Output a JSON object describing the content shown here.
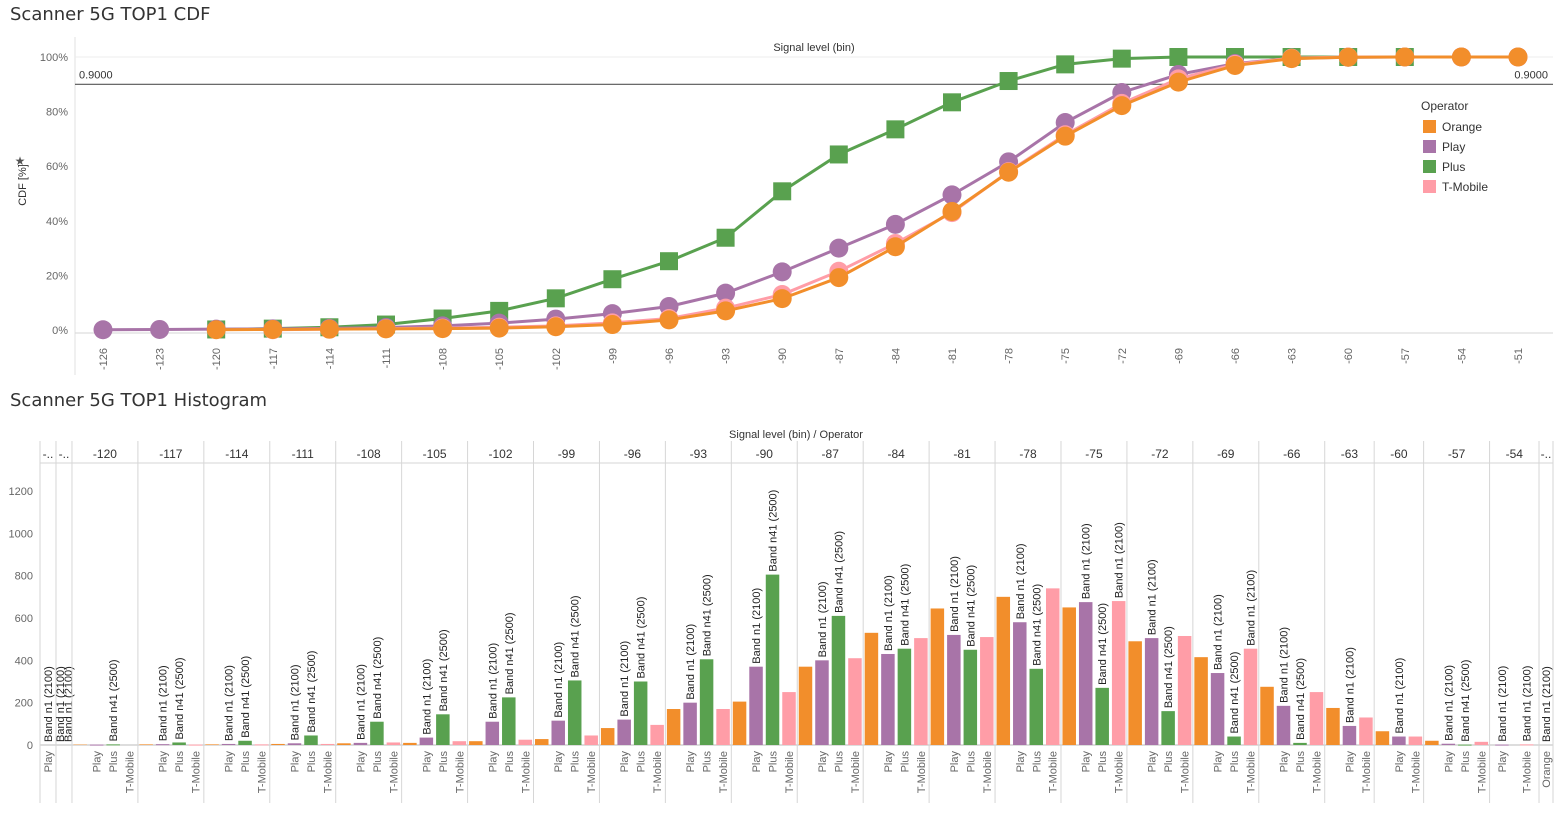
{
  "sheet1": {
    "title": "Scanner 5G TOP1 CDF"
  },
  "sheet2": {
    "title": "Scanner 5G TOP1 Histogram"
  },
  "chart_data": [
    {
      "type": "line",
      "title": "Scanner 5G TOP1 CDF",
      "header": "Signal level (bin)",
      "ylabel": "CDF [%]",
      "ylim": [
        0,
        100
      ],
      "yticks": [
        "0%",
        "20%",
        "40%",
        "60%",
        "80%",
        "100%"
      ],
      "x": [
        -126,
        -123,
        -120,
        -117,
        -114,
        -111,
        -108,
        -105,
        -102,
        -99,
        -96,
        -93,
        -90,
        -87,
        -84,
        -81,
        -78,
        -75,
        -72,
        -69,
        -66,
        -63,
        -60,
        -57,
        -54,
        -51
      ],
      "reference_line": {
        "value": 90,
        "label_left": "0.9000",
        "label_right": "0.9000"
      },
      "legend": {
        "title": "Operator",
        "placement": "right"
      },
      "series": [
        {
          "name": "Orange",
          "color": "#F28E2B",
          "marker": "circle",
          "values": [
            null,
            null,
            0.1,
            0.2,
            0.3,
            0.4,
            0.5,
            0.7,
            1.2,
            2.0,
            3.7,
            7.0,
            11.5,
            19.2,
            30.5,
            43.4,
            57.8,
            71.0,
            82.2,
            90.8,
            96.9,
            99.4,
            99.9,
            100.0,
            100.0,
            100.0
          ]
        },
        {
          "name": "Play",
          "color": "#A874A8",
          "marker": "circle",
          "values": [
            0.1,
            0.2,
            0.3,
            0.4,
            0.6,
            0.9,
            1.5,
            2.5,
            4.0,
            6.0,
            8.6,
            13.5,
            21.3,
            30.0,
            38.7,
            49.5,
            61.6,
            76.0,
            87.0,
            93.6,
            97.6,
            99.5,
            99.9,
            100.0,
            100.0,
            100.0
          ]
        },
        {
          "name": "Plus",
          "color": "#59A14F",
          "marker": "square",
          "values": [
            null,
            null,
            0.2,
            0.5,
            1.0,
            2.0,
            4.2,
            7.0,
            11.6,
            18.6,
            25.2,
            33.8,
            50.8,
            64.3,
            73.5,
            83.4,
            91.2,
            97.3,
            99.4,
            100.0,
            100.0,
            100.0,
            100.0,
            100.0,
            null,
            null
          ]
        },
        {
          "name": "T-Mobile",
          "color": "#FF9DA7",
          "marker": "circle",
          "values": [
            null,
            null,
            null,
            0.1,
            0.3,
            0.5,
            0.7,
            1.0,
            1.5,
            2.6,
            4.2,
            8.0,
            13.0,
            21.5,
            31.7,
            43.0,
            58.0,
            71.5,
            83.0,
            92.0,
            97.3,
            99.6,
            100.0,
            100.0,
            100.0,
            100.0
          ]
        }
      ]
    },
    {
      "type": "bar",
      "title": "Scanner 5G TOP1 Histogram",
      "header": "Signal level (bin) / Operator",
      "ylim": [
        0,
        1300
      ],
      "yticks": [
        0,
        200,
        400,
        600,
        800,
        1000,
        1200
      ],
      "groups": [
        {
          "bin": "-..",
          "bars": [
            {
              "op": "Play",
              "label": "Band n1 (2100)",
              "value": 0
            }
          ]
        },
        {
          "bin": "-..",
          "bars": [
            {
              "op": "",
              "label": "Band n1 (2100)",
              "value": 0
            },
            {
              "op": "",
              "label": "Band n1 (2100)",
              "value": 0
            }
          ]
        },
        {
          "bin": "-120",
          "bars": [
            {
              "op": "Play",
              "label": "",
              "value": 2
            },
            {
              "op": "Plus",
              "label": "Band n41 (2500)",
              "value": 3
            },
            {
              "op": "T-Mobile",
              "label": "",
              "value": 0
            }
          ]
        },
        {
          "bin": "-117",
          "bars": [
            {
              "op": "Play",
              "label": "Band n1 (2100)",
              "value": 4
            },
            {
              "op": "Plus",
              "label": "Band n41 (2500)",
              "value": 12
            },
            {
              "op": "T-Mobile",
              "label": "",
              "value": 2
            }
          ]
        },
        {
          "bin": "-114",
          "bars": [
            {
              "op": "Play",
              "label": "Band n1 (2100)",
              "value": 5
            },
            {
              "op": "Plus",
              "label": "Band n41 (2500)",
              "value": 20
            },
            {
              "op": "T-Mobile",
              "label": "",
              "value": 3
            }
          ]
        },
        {
          "bin": "-111",
          "bars": [
            {
              "op": "Play",
              "label": "Band n1 (2100)",
              "value": 8
            },
            {
              "op": "Plus",
              "label": "Band n41 (2500)",
              "value": 45
            },
            {
              "op": "T-Mobile",
              "label": "",
              "value": 5
            }
          ]
        },
        {
          "bin": "-108",
          "bars": [
            {
              "op": "Play",
              "label": "Band n1 (2100)",
              "value": 10
            },
            {
              "op": "Plus",
              "label": "Band n41 (2500)",
              "value": 110
            },
            {
              "op": "T-Mobile",
              "label": "",
              "value": 12
            }
          ]
        },
        {
          "bin": "-105",
          "bars": [
            {
              "op": "Play",
              "label": "Band n1 (2100)",
              "value": 35
            },
            {
              "op": "Plus",
              "label": "Band n41 (2500)",
              "value": 145
            },
            {
              "op": "T-Mobile",
              "label": "",
              "value": 18
            }
          ]
        },
        {
          "bin": "-102",
          "bars": [
            {
              "op": "Play",
              "label": "Band n1 (2100)",
              "value": 110
            },
            {
              "op": "Plus",
              "label": "Band n41 (2500)",
              "value": 225
            },
            {
              "op": "T-Mobile",
              "label": "",
              "value": 25
            }
          ]
        },
        {
          "bin": "-99",
          "bars": [
            {
              "op": "Play",
              "label": "Band n1 (2100)",
              "value": 115
            },
            {
              "op": "Plus",
              "label": "Band n41 (2500)",
              "value": 305
            },
            {
              "op": "T-Mobile",
              "label": "",
              "value": 45
            }
          ]
        },
        {
          "bin": "-96",
          "bars": [
            {
              "op": "Play",
              "label": "Band n1 (2100)",
              "value": 120
            },
            {
              "op": "Plus",
              "label": "Band n41 (2500)",
              "value": 300
            },
            {
              "op": "T-Mobile",
              "label": "",
              "value": 95
            }
          ]
        },
        {
          "bin": "-93",
          "bars": [
            {
              "op": "Play",
              "label": "Band n1 (2100)",
              "value": 200
            },
            {
              "op": "Plus",
              "label": "Band n41 (2500)",
              "value": 405
            },
            {
              "op": "T-Mobile",
              "label": "",
              "value": 170
            }
          ]
        },
        {
          "bin": "-90",
          "bars": [
            {
              "op": "Play",
              "label": "Band n1 (2100)",
              "value": 370
            },
            {
              "op": "Plus",
              "label": "Band n41 (2500)",
              "value": 805
            },
            {
              "op": "T-Mobile",
              "label": "",
              "value": 250
            }
          ]
        },
        {
          "bin": "-87",
          "bars": [
            {
              "op": "Play",
              "label": "Band n1 (2100)",
              "value": 400
            },
            {
              "op": "Plus",
              "label": "Band n41 (2500)",
              "value": 610
            },
            {
              "op": "T-Mobile",
              "label": "",
              "value": 410
            }
          ]
        },
        {
          "bin": "-84",
          "bars": [
            {
              "op": "Play",
              "label": "Band n1 (2100)",
              "value": 430
            },
            {
              "op": "Plus",
              "label": "Band n41 (2500)",
              "value": 455
            },
            {
              "op": "T-Mobile",
              "label": "",
              "value": 505
            }
          ]
        },
        {
          "bin": "-81",
          "bars": [
            {
              "op": "Play",
              "label": "Band n1 (2100)",
              "value": 520
            },
            {
              "op": "Plus",
              "label": "Band n41 (2500)",
              "value": 450
            },
            {
              "op": "T-Mobile",
              "label": "",
              "value": 510
            }
          ]
        },
        {
          "bin": "-78",
          "bars": [
            {
              "op": "Play",
              "label": "Band n1 (2100)",
              "value": 580
            },
            {
              "op": "Plus",
              "label": "Band n41 (2500)",
              "value": 360
            },
            {
              "op": "T-Mobile",
              "label": "",
              "value": 740
            }
          ]
        },
        {
          "bin": "-75",
          "bars": [
            {
              "op": "Play",
              "label": "Band n1 (2100)",
              "value": 675
            },
            {
              "op": "Plus",
              "label": "Band n41 (2500)",
              "value": 270
            },
            {
              "op": "T-Mobile",
              "label": "Band n1 (2100)",
              "value": 680
            }
          ]
        },
        {
          "bin": "-72",
          "bars": [
            {
              "op": "Play",
              "label": "Band n1 (2100)",
              "value": 505
            },
            {
              "op": "Plus",
              "label": "Band n41 (2500)",
              "value": 160
            },
            {
              "op": "T-Mobile",
              "label": "",
              "value": 515
            }
          ]
        },
        {
          "bin": "-69",
          "bars": [
            {
              "op": "Play",
              "label": "Band n1 (2100)",
              "value": 340
            },
            {
              "op": "Plus",
              "label": "Band n41 (2500)",
              "value": 40
            },
            {
              "op": "T-Mobile",
              "label": "Band n1 (2100)",
              "value": 455
            }
          ]
        },
        {
          "bin": "-66",
          "bars": [
            {
              "op": "Play",
              "label": "Band n1 (2100)",
              "value": 185
            },
            {
              "op": "Plus",
              "label": "Band n41 (2500)",
              "value": 10
            },
            {
              "op": "T-Mobile",
              "label": "",
              "value": 250
            }
          ]
        },
        {
          "bin": "-63",
          "bars": [
            {
              "op": "Play",
              "label": "Band n1 (2100)",
              "value": 90
            },
            {
              "op": "T-Mobile",
              "label": "",
              "value": 130
            }
          ]
        },
        {
          "bin": "-60",
          "bars": [
            {
              "op": "Play",
              "label": "Band n1 (2100)",
              "value": 40
            },
            {
              "op": "T-Mobile",
              "label": "",
              "value": 40
            }
          ]
        },
        {
          "bin": "-57",
          "bars": [
            {
              "op": "Play",
              "label": "Band n1 (2100)",
              "value": 6
            },
            {
              "op": "Plus",
              "label": "Band n41 (2500)",
              "value": 2
            },
            {
              "op": "T-Mobile",
              "label": "",
              "value": 15
            }
          ]
        },
        {
          "bin": "-54",
          "bars": [
            {
              "op": "Play",
              "label": "Band n1 (2100)",
              "value": 2
            },
            {
              "op": "T-Mobile",
              "label": "Band n1 (2100)",
              "value": 3
            }
          ]
        },
        {
          "bin": "-..",
          "bars": [
            {
              "op": "Orange",
              "label": "Band n1 (2100)",
              "value": 0
            }
          ]
        }
      ],
      "orange_overlay": [
        {
          "bin": "-120",
          "value": 2
        },
        {
          "bin": "-117",
          "value": 3
        },
        {
          "bin": "-114",
          "value": 3
        },
        {
          "bin": "-111",
          "value": 5
        },
        {
          "bin": "-108",
          "value": 8
        },
        {
          "bin": "-105",
          "value": 10
        },
        {
          "bin": "-102",
          "value": 18
        },
        {
          "bin": "-99",
          "value": 28
        },
        {
          "bin": "-96",
          "value": 80
        },
        {
          "bin": "-93",
          "value": 170
        },
        {
          "bin": "-90",
          "value": 205
        },
        {
          "bin": "-87",
          "value": 370
        },
        {
          "bin": "-84",
          "value": 530
        },
        {
          "bin": "-81",
          "value": 645
        },
        {
          "bin": "-78",
          "value": 700
        },
        {
          "bin": "-75",
          "value": 650
        },
        {
          "bin": "-72",
          "value": 490
        },
        {
          "bin": "-69",
          "value": 415
        },
        {
          "bin": "-66",
          "value": 275
        },
        {
          "bin": "-63",
          "value": 175
        },
        {
          "bin": "-60",
          "value": 65
        },
        {
          "bin": "-57",
          "value": 20
        }
      ],
      "operator_colors": {
        "Orange": "#F28E2B",
        "Play": "#A874A8",
        "Plus": "#59A14F",
        "T-Mobile": "#FF9DA7"
      }
    }
  ]
}
